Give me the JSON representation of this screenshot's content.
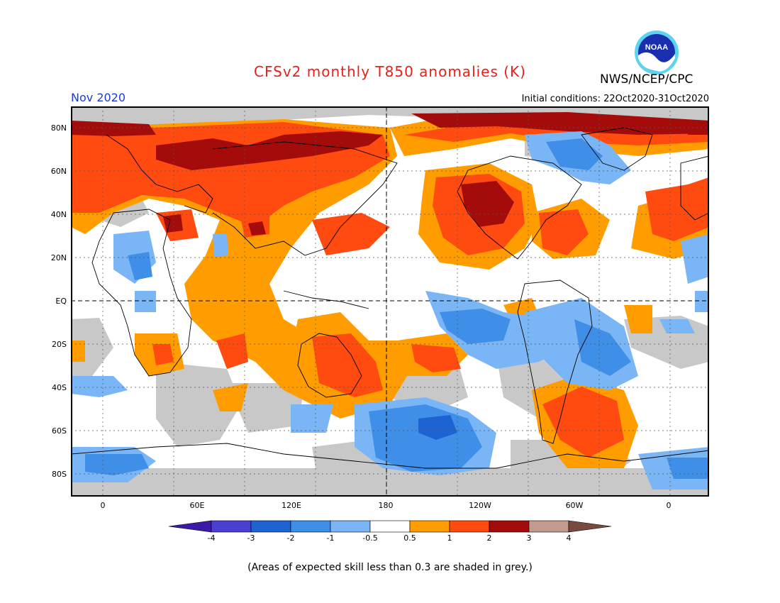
{
  "title": "CFSv2 monthly T850 anomalies (K)",
  "agency": "NWS/NCEP/CPC",
  "logo_text": "NOAA",
  "valid_month": "Nov 2020",
  "initial_conditions": "Initial conditions: 22Oct2020-31Oct2020",
  "lat_labels": [
    "80N",
    "60N",
    "40N",
    "20N",
    "EQ",
    "20S",
    "40S",
    "60S",
    "80S"
  ],
  "lon_labels": [
    "0",
    "60E",
    "120E",
    "180",
    "120W",
    "60W",
    "0"
  ],
  "colorbar": {
    "ticks": [
      "-4",
      "-3",
      "-2",
      "-1",
      "-0.5",
      "0.5",
      "1",
      "2",
      "3",
      "4"
    ],
    "colors": [
      "#3c1aa8",
      "#4a3fd0",
      "#1e63d2",
      "#3f8ee8",
      "#7ab6f5",
      "#ffffff",
      "#ff9d00",
      "#ff4a10",
      "#a40c0c",
      "#c49a8e",
      "#7a4a40"
    ]
  },
  "grey_note": "(Areas of expected skill less than 0.3 are shaded in grey.)",
  "colors": {
    "title": "#e8201a",
    "month": "#1f3bd6",
    "skill_grey": "#c8c8c8"
  }
}
